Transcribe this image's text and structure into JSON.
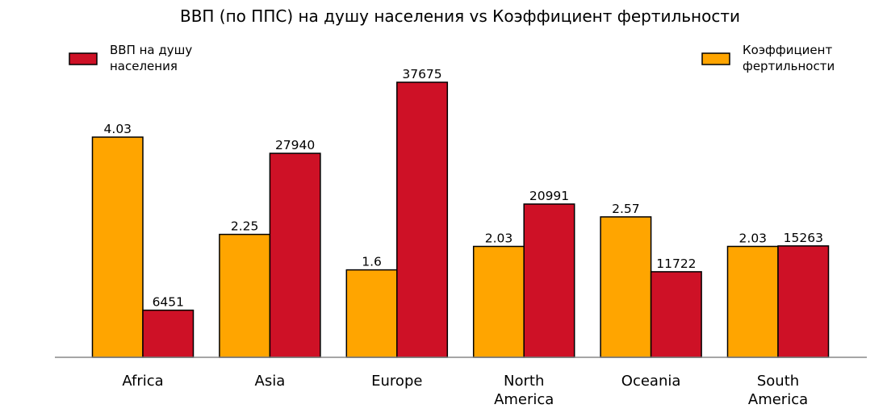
{
  "chart_data": {
    "type": "bar",
    "title": "ВВП (по ППС) на душу населения vs Коэффициент фертильности",
    "categories": [
      "Africa",
      "Asia",
      "Europe",
      "North America",
      "Oceania",
      "South America"
    ],
    "series": [
      {
        "name": "Коэффициент фертильности",
        "color": "#FFA500",
        "values": [
          4.03,
          2.25,
          1.6,
          2.03,
          2.57,
          2.03
        ],
        "labels": [
          "4.03",
          "2.25",
          "1.6",
          "2.03",
          "2.57",
          "2.03"
        ]
      },
      {
        "name": "ВВП на душу населения",
        "color": "#CE1126",
        "values": [
          6451,
          27940,
          37675,
          20991,
          11722,
          15263
        ],
        "labels": [
          "6451",
          "27940",
          "37675",
          "20991",
          "11722",
          "15263"
        ]
      }
    ],
    "left_axis_max": 4.03,
    "right_axis_max": 37675,
    "legend": {
      "left": [
        "ВВП на душу",
        "населения"
      ],
      "right": [
        "Коэффициент",
        "фертильности"
      ]
    },
    "tick_labels": [
      [
        "Africa"
      ],
      [
        "Asia"
      ],
      [
        "Europe"
      ],
      [
        "North",
        "America"
      ],
      [
        "Oceania"
      ],
      [
        "South",
        "America"
      ]
    ],
    "grid": false
  }
}
